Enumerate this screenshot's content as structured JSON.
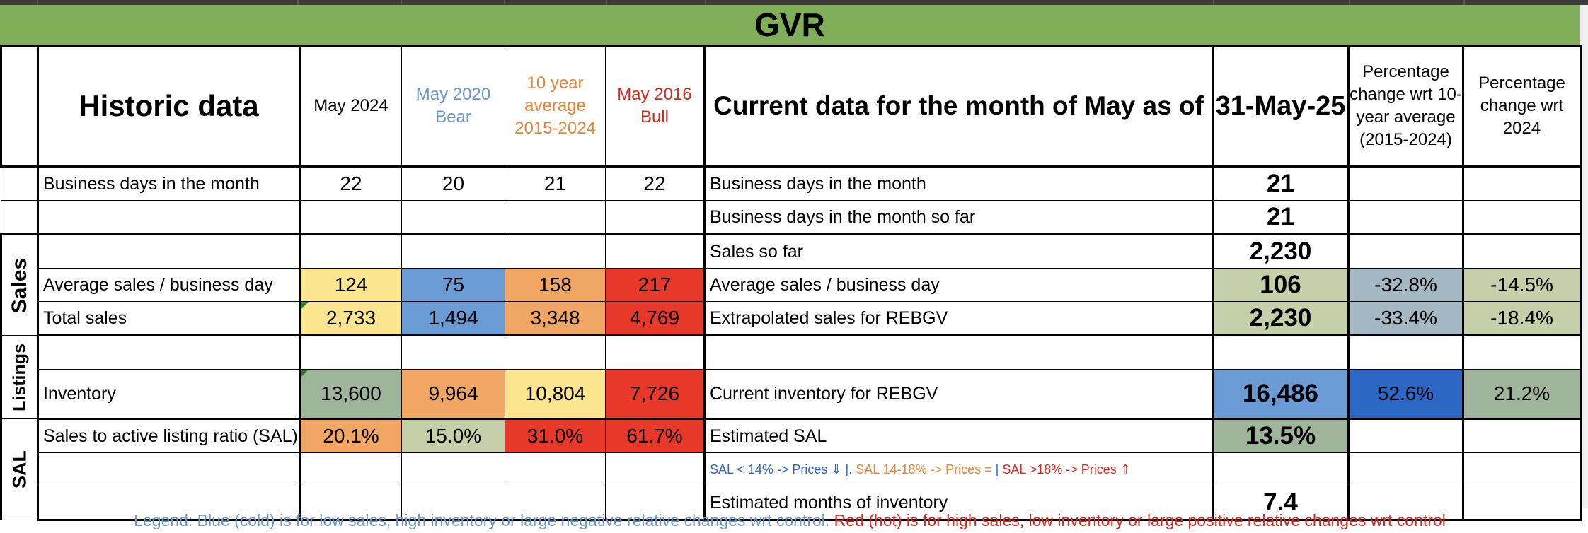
{
  "title": "GVR",
  "colors": {
    "title_bg": "#7fad58",
    "yellow": "#fce58f",
    "blue": "#6b9bd4",
    "orange": "#f2a664",
    "red": "#e8382a",
    "olive": "#c5cfaa",
    "slate": "#a3b8c2",
    "sage": "#9fb59b",
    "deep_blue": "#2b67c4",
    "legend_blue": "#6a96cc",
    "legend_red": "#d8261d"
  },
  "header": {
    "historic": "Historic data",
    "col_may2024": "May 2024",
    "col_may2020": "May 2020 Bear",
    "col_10yr": "10 year average 2015-2024",
    "col_may2016": "May 2016 Bull",
    "current": "Current data for the month of May as of",
    "date": "31-May-25",
    "pct_10yr": "Percentage change wrt 10-year average (2015-2024)",
    "pct_2024": "Percentage change wrt 2024"
  },
  "sections": {
    "sales": "Sales",
    "listings": "Listings",
    "sal": "SAL"
  },
  "rows": {
    "biz_days": {
      "label": "Business days in the month",
      "may2024": "22",
      "may2020": "20",
      "avg10": "21",
      "may2016": "22",
      "cur_label": "Business days in the month",
      "cur_value": "21"
    },
    "biz_so_far": {
      "cur_label": "Business days in the month so far",
      "cur_value": "21"
    },
    "sales_so_far": {
      "cur_label": "Sales so far",
      "cur_value": "2,230"
    },
    "avg_sales": {
      "label": "Average sales /  business day",
      "may2024": "124",
      "may2020": "75",
      "avg10": "158",
      "may2016": "217",
      "cur_label": "Average sales / business day",
      "cur_value": "106",
      "pct_10yr": "-32.8%",
      "pct_2024": "-14.5%"
    },
    "total_sales": {
      "label": "Total sales",
      "may2024": "2,733",
      "may2020": "1,494",
      "avg10": "3,348",
      "may2016": "4,769",
      "cur_label": "Extrapolated sales for REBGV",
      "cur_value": "2,230",
      "pct_10yr": "-33.4%",
      "pct_2024": "-18.4%"
    },
    "inventory": {
      "label": "Inventory",
      "may2024": "13,600",
      "may2020": "9,964",
      "avg10": "10,804",
      "may2016": "7,726",
      "cur_label": "Current inventory for REBGV",
      "cur_value": "16,486",
      "pct_10yr": "52.6%",
      "pct_2024": "21.2%"
    },
    "sal": {
      "label": "Sales to active listing ratio (SAL)",
      "may2024": "20.1%",
      "may2020": "15.0%",
      "avg10": "31.0%",
      "may2016": "61.7%",
      "cur_label": "Estimated SAL",
      "cur_value": "13.5%"
    },
    "months_inv": {
      "cur_label": "Estimated months of inventory",
      "cur_value": "7.4"
    }
  },
  "sal_key": {
    "low": "SAL < 14% -> Prices ⇓",
    "sep1": "|.",
    "mid": "SAL 14-18% -> Prices =",
    "sep2": "|",
    "high": "SAL >18% -> Prices ⇑"
  },
  "legend": {
    "cold": "Legend: Blue (cold) is for low sales, high inventory or large negative relative changes wrt control.",
    "hot": "Red (hot) is for high sales, low inventory or large positive relative changes wrt control"
  }
}
